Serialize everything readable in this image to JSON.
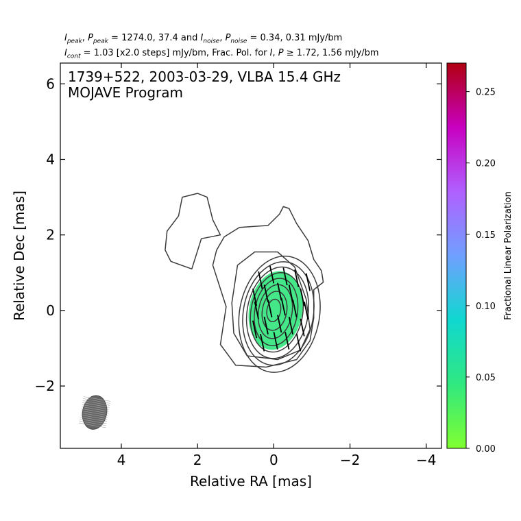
{
  "header": {
    "line1": {
      "peak_values": "1274.0, 37.4",
      "noise_values": "0.34, 0.31 mJy/bm"
    },
    "line2": {
      "cont_text": "= 1.03 [x2.0 steps] mJy/bm, Frac. Pol. for",
      "threshold_values": "1.72, 1.56 mJy/bm"
    }
  },
  "chart_data": {
    "type": "contour",
    "title": "1739+522, 2003-03-29, VLBA 15.4 GHz",
    "subtitle": "MOJAVE Program",
    "xlabel": "Relative RA [mas]",
    "ylabel": "Relative Dec [mas]",
    "xlim": [
      5.6,
      -4.4
    ],
    "ylim": [
      -3.65,
      6.55
    ],
    "x_ticks": [
      4,
      2,
      0,
      -2,
      -4
    ],
    "y_ticks": [
      -2,
      0,
      2,
      4,
      6
    ],
    "x_tick_labels": [
      "4",
      "2",
      "0",
      "−2",
      "−4"
    ],
    "y_tick_labels": [
      "−2",
      "0",
      "2",
      "4",
      "6"
    ],
    "colorbar": {
      "label": "Fractional Linear Polarization",
      "range": [
        0.0,
        0.27
      ],
      "ticks": [
        0.0,
        0.05,
        0.1,
        0.15,
        0.2,
        0.25
      ],
      "tick_labels": [
        "0.00",
        "0.05",
        "0.10",
        "0.15",
        "0.20",
        "0.25"
      ],
      "colors": [
        "#80ff30",
        "#30e880",
        "#10d8d0",
        "#70a0ff",
        "#b060ff",
        "#c800c0",
        "#b00010"
      ]
    },
    "contour_color": "#3a3a3a",
    "peak_position": [
      0.0,
      0.0
    ],
    "core_contours": [
      {
        "rx": 1.05,
        "ry": 1.55,
        "cx": -0.15,
        "cy": -0.1
      },
      {
        "rx": 0.92,
        "ry": 1.38,
        "cx": -0.12,
        "cy": -0.08
      },
      {
        "rx": 0.8,
        "ry": 1.22,
        "cx": -0.1,
        "cy": -0.06
      },
      {
        "rx": 0.68,
        "ry": 1.06,
        "cx": -0.08,
        "cy": -0.05
      },
      {
        "rx": 0.56,
        "ry": 0.9,
        "cx": -0.06,
        "cy": -0.04
      },
      {
        "rx": 0.44,
        "ry": 0.72,
        "cx": -0.04,
        "cy": -0.03
      },
      {
        "rx": 0.32,
        "ry": 0.52,
        "cx": -0.02,
        "cy": -0.01
      },
      {
        "rx": 0.18,
        "ry": 0.3,
        "cx": 0.0,
        "cy": 0.0
      }
    ],
    "core_tilt_deg": -10,
    "outer_contours": [
      {
        "name": "extended-envelope",
        "points": [
          [
            1.25,
            0.1
          ],
          [
            1.4,
            -0.9
          ],
          [
            1.0,
            -1.45
          ],
          [
            0.2,
            -1.5
          ],
          [
            -0.6,
            -1.3
          ],
          [
            -0.95,
            -0.8
          ],
          [
            -1.05,
            -0.2
          ],
          [
            -1.05,
            0.55
          ],
          [
            -1.3,
            0.75
          ],
          [
            -1.25,
            1.05
          ],
          [
            -1.05,
            1.35
          ],
          [
            -0.9,
            1.85
          ],
          [
            -0.6,
            2.3
          ],
          [
            -0.4,
            2.7
          ],
          [
            -0.25,
            2.75
          ],
          [
            -0.15,
            2.55
          ],
          [
            0.15,
            2.25
          ],
          [
            0.9,
            2.2
          ],
          [
            1.3,
            1.95
          ],
          [
            1.5,
            1.6
          ],
          [
            1.6,
            1.2
          ],
          [
            1.25,
            0.1
          ]
        ]
      },
      {
        "name": "inner-envelope",
        "points": [
          [
            1.1,
            0.2
          ],
          [
            1.05,
            -0.6
          ],
          [
            0.7,
            -1.2
          ],
          [
            -0.1,
            -1.3
          ],
          [
            -0.7,
            -1.05
          ],
          [
            -0.95,
            -0.5
          ],
          [
            -0.85,
            0.3
          ],
          [
            -0.55,
            1.15
          ],
          [
            -0.1,
            1.55
          ],
          [
            0.5,
            1.55
          ],
          [
            0.95,
            1.2
          ],
          [
            1.1,
            0.2
          ]
        ]
      },
      {
        "name": "northeast-lobe",
        "points": [
          [
            1.4,
            2.0
          ],
          [
            1.9,
            1.9
          ],
          [
            2.15,
            1.1
          ],
          [
            2.7,
            1.3
          ],
          [
            2.85,
            1.6
          ],
          [
            2.8,
            2.1
          ],
          [
            2.5,
            2.5
          ],
          [
            2.4,
            3.0
          ],
          [
            2.0,
            3.1
          ],
          [
            1.75,
            3.0
          ],
          [
            1.6,
            2.4
          ],
          [
            1.4,
            2.0
          ]
        ]
      }
    ],
    "pol_region": {
      "color": "#44e888",
      "cx": -0.05,
      "cy": 0.0,
      "rx": 0.7,
      "ry": 1.05
    },
    "evpa_sticks": [
      {
        "x": -0.9,
        "y": 0.75
      },
      {
        "x": -0.6,
        "y": 0.85
      },
      {
        "x": -0.3,
        "y": 0.9
      },
      {
        "x": 0.05,
        "y": 0.95
      },
      {
        "x": 0.35,
        "y": 0.8
      },
      {
        "x": -0.75,
        "y": 0.35
      },
      {
        "x": -0.45,
        "y": 0.45
      },
      {
        "x": -0.15,
        "y": 0.5
      },
      {
        "x": 0.2,
        "y": 0.45
      },
      {
        "x": 0.5,
        "y": 0.35
      },
      {
        "x": -0.85,
        "y": 0.0
      },
      {
        "x": -0.55,
        "y": 0.05
      },
      {
        "x": -0.25,
        "y": 0.1
      },
      {
        "x": 0.1,
        "y": 0.05
      },
      {
        "x": 0.45,
        "y": 0.0
      },
      {
        "x": -0.75,
        "y": -0.45
      },
      {
        "x": -0.45,
        "y": -0.4
      },
      {
        "x": -0.15,
        "y": -0.35
      },
      {
        "x": 0.2,
        "y": -0.4
      },
      {
        "x": 0.5,
        "y": -0.5
      },
      {
        "x": -0.65,
        "y": -0.85
      },
      {
        "x": -0.35,
        "y": -0.8
      },
      {
        "x": -0.05,
        "y": -0.8
      },
      {
        "x": 0.3,
        "y": -0.85
      }
    ],
    "evpa_angle_deg": 78,
    "beam": {
      "x": 4.7,
      "y": -2.7,
      "major": 0.9,
      "minor": 0.55,
      "pa_deg": -10
    }
  }
}
